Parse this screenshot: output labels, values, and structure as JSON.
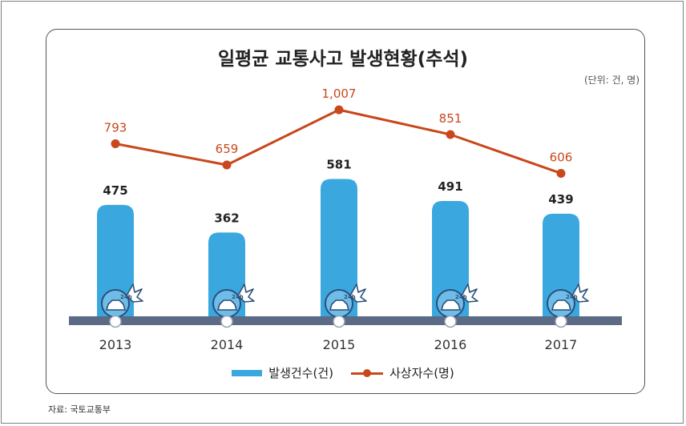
{
  "title": "일평균 교통사고 발생현황(추석)",
  "unit_note": "(단위: 건, 명)",
  "source": "자료: 국토교통부",
  "colors": {
    "bar": "#3aa8df",
    "line": "#c8481b",
    "ground": "#5b6a85"
  },
  "legend": {
    "bar_label": "발생건수(건)",
    "line_label": "사상자수(명)"
  },
  "icons": [
    "car-crash-clock-icon"
  ],
  "chart_data": {
    "type": "bar",
    "title": "일평균 교통사고 발생현황(추석)",
    "categories": [
      "2013",
      "2014",
      "2015",
      "2016",
      "2017"
    ],
    "series": [
      {
        "name": "발생건수(건)",
        "type": "bar",
        "values": [
          475,
          362,
          581,
          491,
          439
        ],
        "labels": [
          "475",
          "362",
          "581",
          "491",
          "439"
        ]
      },
      {
        "name": "사상자수(명)",
        "type": "line",
        "values": [
          793,
          659,
          1007,
          851,
          606
        ],
        "labels": [
          "793",
          "659",
          "1,007",
          "851",
          "606"
        ]
      }
    ],
    "legend_position": "bottom",
    "grid": false
  }
}
